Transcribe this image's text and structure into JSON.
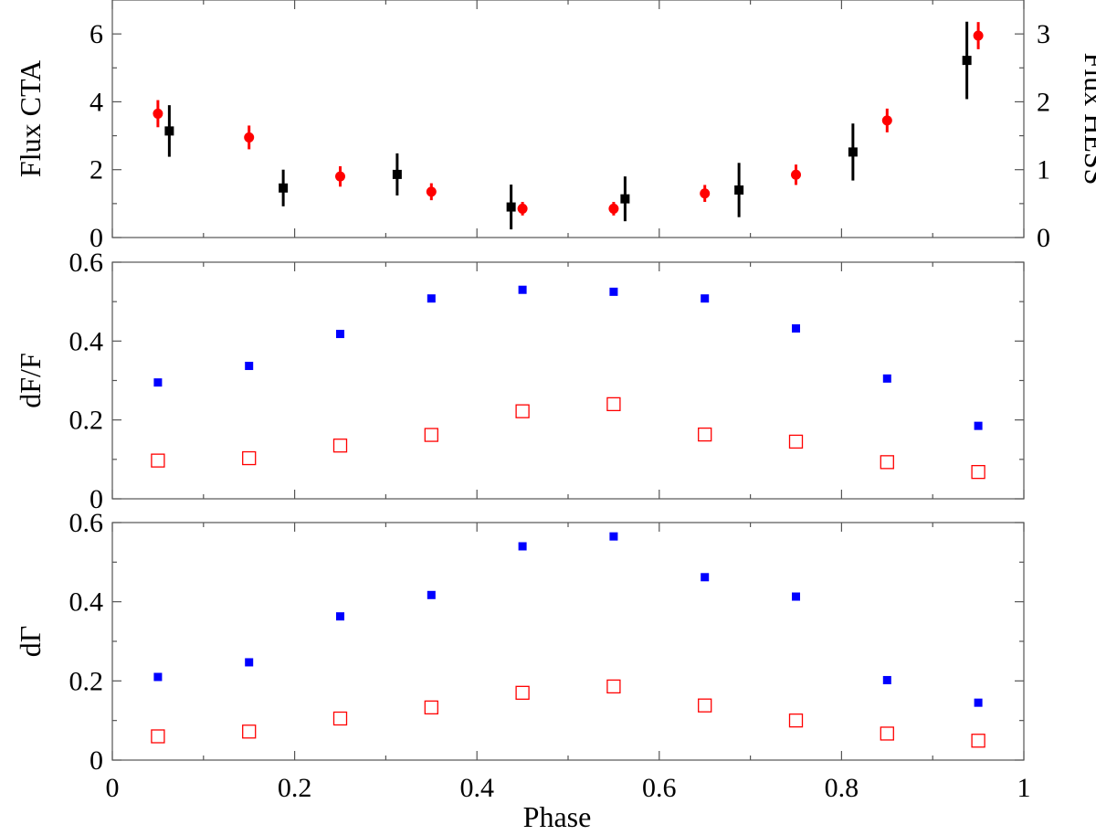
{
  "chart_data": {
    "type": "scatter",
    "xlabel": "Phase",
    "xlim": [
      0,
      1
    ],
    "x_ticks": [
      "0",
      "0.2",
      "0.4",
      "0.6",
      "0.8",
      "1"
    ],
    "panels": [
      {
        "id": "flux",
        "ylabel": "Flux CTA",
        "ylim": [
          0,
          7
        ],
        "y_ticks": [
          "0",
          "2",
          "4",
          "6"
        ],
        "y2label": "Flux HESS",
        "y2lim": [
          0,
          3.5
        ],
        "y2_ticks": [
          "0",
          "1",
          "2",
          "3"
        ],
        "series": [
          {
            "name": "CTA",
            "marker": "filled-circle",
            "color": "#ff0000",
            "axis": "left",
            "x": [
              0.05,
              0.15,
              0.25,
              0.35,
              0.45,
              0.55,
              0.65,
              0.75,
              0.85,
              0.95
            ],
            "y": [
              3.65,
              2.95,
              1.8,
              1.35,
              0.85,
              0.85,
              1.3,
              1.85,
              3.45,
              5.95
            ],
            "err": [
              0.4,
              0.35,
              0.3,
              0.25,
              0.2,
              0.2,
              0.25,
              0.3,
              0.35,
              0.4
            ]
          },
          {
            "name": "HESS",
            "marker": "filled-square",
            "color": "#000000",
            "axis": "right",
            "x": [
              0.0625,
              0.1875,
              0.3125,
              0.4375,
              0.5625,
              0.6875,
              0.8125,
              0.9375
            ],
            "y": [
              1.57,
              0.73,
              0.93,
              0.45,
              0.57,
              0.7,
              1.26,
              2.61
            ],
            "err": [
              0.38,
              0.27,
              0.31,
              0.33,
              0.33,
              0.4,
              0.42,
              0.57
            ]
          }
        ]
      },
      {
        "id": "dF",
        "ylabel": "dF/F",
        "ylim": [
          0,
          0.6
        ],
        "y_ticks": [
          "0",
          "0.2",
          "0.4",
          "0.6"
        ],
        "series": [
          {
            "name": "filled",
            "marker": "filled-square",
            "color": "#0000ff",
            "x": [
              0.05,
              0.15,
              0.25,
              0.35,
              0.45,
              0.55,
              0.65,
              0.75,
              0.85,
              0.95
            ],
            "y": [
              0.295,
              0.337,
              0.418,
              0.508,
              0.53,
              0.525,
              0.508,
              0.432,
              0.305,
              0.185
            ]
          },
          {
            "name": "open",
            "marker": "open-square",
            "color": "#ff0000",
            "x": [
              0.05,
              0.15,
              0.25,
              0.35,
              0.45,
              0.55,
              0.65,
              0.75,
              0.85,
              0.95
            ],
            "y": [
              0.097,
              0.103,
              0.135,
              0.162,
              0.222,
              0.24,
              0.163,
              0.145,
              0.093,
              0.068
            ]
          }
        ]
      },
      {
        "id": "dGamma",
        "ylabel": "dΓ",
        "ylim": [
          0,
          0.6
        ],
        "y_ticks": [
          "0",
          "0.2",
          "0.4",
          "0.6"
        ],
        "series": [
          {
            "name": "filled",
            "marker": "filled-square",
            "color": "#0000ff",
            "x": [
              0.05,
              0.15,
              0.25,
              0.35,
              0.45,
              0.55,
              0.65,
              0.75,
              0.85,
              0.95
            ],
            "y": [
              0.21,
              0.247,
              0.363,
              0.417,
              0.54,
              0.565,
              0.462,
              0.413,
              0.202,
              0.145
            ]
          },
          {
            "name": "open",
            "marker": "open-square",
            "color": "#ff0000",
            "x": [
              0.05,
              0.15,
              0.25,
              0.35,
              0.45,
              0.55,
              0.65,
              0.75,
              0.85,
              0.95
            ],
            "y": [
              0.06,
              0.072,
              0.105,
              0.133,
              0.17,
              0.186,
              0.138,
              0.1,
              0.067,
              0.049
            ]
          }
        ]
      }
    ]
  }
}
